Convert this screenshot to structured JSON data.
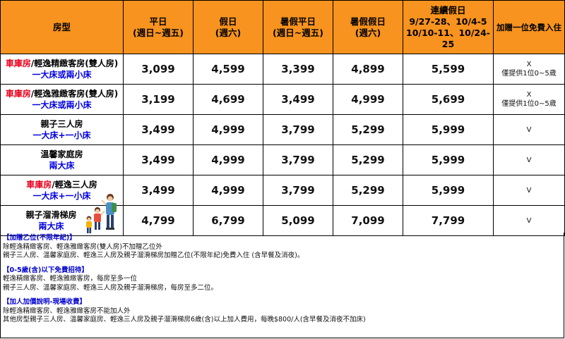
{
  "headers": {
    "room": "房型",
    "weekday": [
      "平日",
      "(週日~週五)"
    ],
    "holiday": [
      "假日",
      "(週六)"
    ],
    "summer_weekday": [
      "暑假平日",
      "(週日~週五)"
    ],
    "summer_holiday": [
      "暑假假日",
      "(週六)"
    ],
    "long_holiday": [
      "連續假日",
      "9/27-28、10/4-5",
      "10/10-11、10/24-25"
    ],
    "extra_person": "加贈一位免費入住"
  },
  "rows": [
    {
      "name_red": "車庫房",
      "name_rest": "/輕逸精緻客房(雙人房)",
      "bed": "一大床或兩小床",
      "prices": [
        "3,099",
        "4,599",
        "3,399",
        "4,899",
        "5,599"
      ],
      "extra": [
        "X",
        "僅提供1位0~5歲"
      ]
    },
    {
      "name_red": "車庫房",
      "name_rest": "/輕逸雅緻客房(雙人房)",
      "bed": "一大床或兩小床",
      "prices": [
        "3,199",
        "4,699",
        "3,499",
        "4,999",
        "5,699"
      ],
      "extra": [
        "X",
        "僅提供1位0~5歲"
      ]
    },
    {
      "name_red": "",
      "name_rest": "親子三人房",
      "bed": "一大床+一小床",
      "prices": [
        "3,499",
        "4,999",
        "3,799",
        "5,299",
        "5,999"
      ],
      "extra": [
        "V",
        ""
      ]
    },
    {
      "name_red": "",
      "name_rest": "溫馨家庭房",
      "bed": "兩大床",
      "prices": [
        "3,499",
        "4,999",
        "3,799",
        "5,299",
        "5,999"
      ],
      "extra": [
        "V",
        ""
      ]
    },
    {
      "name_red": "車庫房",
      "name_rest": "/輕逸三人房",
      "bed": "一大床+一小床",
      "prices": [
        "3,499",
        "4,999",
        "3,799",
        "5,299",
        "5,999"
      ],
      "extra": [
        "V",
        ""
      ]
    },
    {
      "name_red": "",
      "name_rest": "親子溜滑梯房",
      "bed": "兩大床",
      "prices": [
        "4,799",
        "6,799",
        "5,099",
        "7,099",
        "7,799"
      ],
      "extra": [
        "V",
        ""
      ]
    }
  ],
  "notes": {
    "extra_title": "【加贈乙位(不限年紀)】",
    "extra_lines": [
      "除輕逸精緻客房、輕逸雅緻客房(雙人房)不加贈乙位外",
      "親子三人房、溫馨家庭房、輕逸三人房及親子溜滑梯房加贈乙位(不限年紀)免費入住 (含早餐及消夜)。"
    ],
    "free_title": "【0-5歲(含)以下免費招待】",
    "free_lines": [
      "輕逸精緻客房、輕逸雅緻客房，每房至多一位",
      "親子三人房、溫馨家庭房、輕逸三人房及親子溜滑梯房，每房至多二位。"
    ],
    "addon_title": "【加人加價說明-現場收費】",
    "addon_lines": [
      "除輕逸精緻客房、輕逸雅緻客房不能加人外",
      "其他房型親子三人房、溫馨家庭房、輕逸三人房及親子溜滑梯房6歲(含)以上加人費用，每晚$800/人(含早餐及消夜不加床)"
    ]
  },
  "colors": {
    "header_bg": "#f7931e",
    "red": "#e8001c",
    "blue": "#0000e0"
  }
}
